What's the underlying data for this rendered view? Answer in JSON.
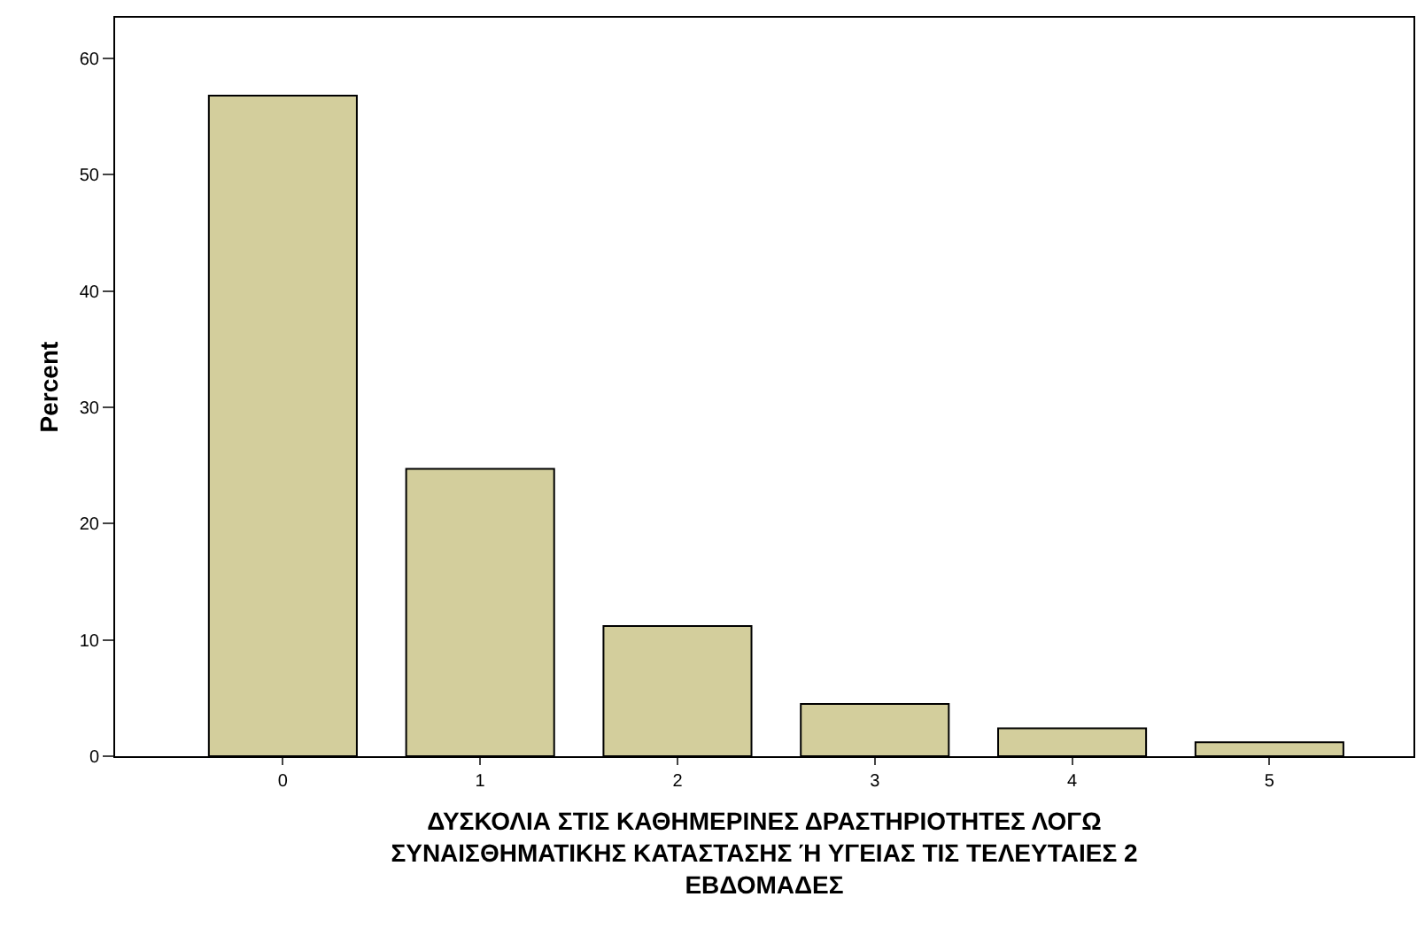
{
  "chart_data": {
    "type": "bar",
    "xlabel": "ΔΥΣΚΟΛΙΑ ΣΤΙΣ ΚΑΘΗΜΕΡΙΝΕΣ ΔΡΑΣΤΗΡΙΟΤΗΤΕΣ ΛΟΓΩ ΣΥΝΑΙΣΘΗΜΑΤΙΚΗΣ ΚΑΤΑΣΤΑΣΗΣ Ή ΥΓΕΙΑΣ ΤΙΣ ΤΕΛΕΥΤΑΙΕΣ 2 ΕΒΔΟΜΑΔΕΣ",
    "ylabel": "Percent",
    "categories": [
      "0",
      "1",
      "2",
      "3",
      "4",
      "5"
    ],
    "values": [
      56.8,
      24.7,
      11.2,
      4.5,
      2.4,
      1.2
    ],
    "color": "#d3ce9c",
    "ylim": [
      0,
      63.5
    ],
    "yticks": [
      0,
      10,
      20,
      30,
      40,
      50,
      60
    ]
  }
}
